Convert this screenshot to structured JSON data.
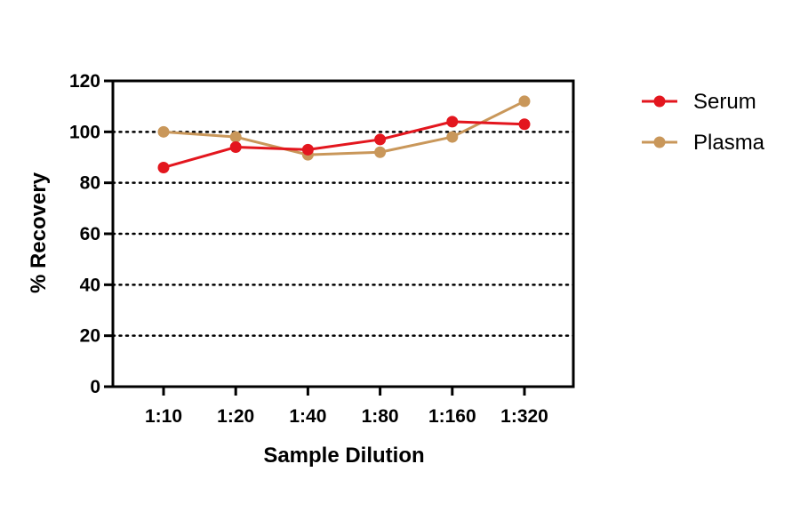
{
  "chart_data": {
    "type": "line",
    "title": "",
    "xlabel": "Sample Dilution",
    "ylabel": "% Recovery",
    "categories": [
      "1:10",
      "1:20",
      "1:40",
      "1:80",
      "1:160",
      "1:320"
    ],
    "ylim": [
      0,
      120
    ],
    "yticks": [
      0,
      20,
      40,
      60,
      80,
      100,
      120
    ],
    "grid": "horizontal dotted at 20, 40, 60, 80, 100",
    "legend_position": "right",
    "series": [
      {
        "name": "Serum",
        "color": "#e3161e",
        "values": [
          86,
          94,
          93,
          97,
          104,
          103
        ]
      },
      {
        "name": "Plasma",
        "color": "#c9975a",
        "values": [
          100,
          98,
          91,
          92,
          98,
          112
        ]
      }
    ]
  }
}
